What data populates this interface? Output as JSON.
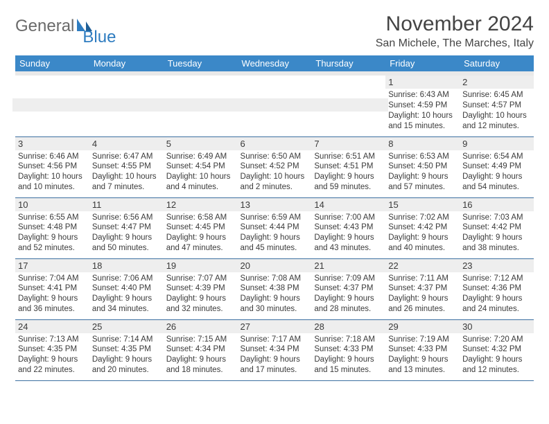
{
  "brand": {
    "general": "General",
    "blue": "Blue"
  },
  "header": {
    "month_title": "November 2024",
    "location": "San Michele, The Marches, Italy"
  },
  "colors": {
    "header_bg": "#3b88c8",
    "header_fg": "#ffffff",
    "daynum_bg": "#eeeeee",
    "row_border": "#3b6fa0",
    "logo_accent": "#2e7cc0",
    "text": "#3a3a3a"
  },
  "weekdays": [
    "Sunday",
    "Monday",
    "Tuesday",
    "Wednesday",
    "Thursday",
    "Friday",
    "Saturday"
  ],
  "weeks": [
    [
      null,
      null,
      null,
      null,
      null,
      {
        "d": "1",
        "sr": "Sunrise: 6:43 AM",
        "ss": "Sunset: 4:59 PM",
        "dl1": "Daylight: 10 hours",
        "dl2": "and 15 minutes."
      },
      {
        "d": "2",
        "sr": "Sunrise: 6:45 AM",
        "ss": "Sunset: 4:57 PM",
        "dl1": "Daylight: 10 hours",
        "dl2": "and 12 minutes."
      }
    ],
    [
      {
        "d": "3",
        "sr": "Sunrise: 6:46 AM",
        "ss": "Sunset: 4:56 PM",
        "dl1": "Daylight: 10 hours",
        "dl2": "and 10 minutes."
      },
      {
        "d": "4",
        "sr": "Sunrise: 6:47 AM",
        "ss": "Sunset: 4:55 PM",
        "dl1": "Daylight: 10 hours",
        "dl2": "and 7 minutes."
      },
      {
        "d": "5",
        "sr": "Sunrise: 6:49 AM",
        "ss": "Sunset: 4:54 PM",
        "dl1": "Daylight: 10 hours",
        "dl2": "and 4 minutes."
      },
      {
        "d": "6",
        "sr": "Sunrise: 6:50 AM",
        "ss": "Sunset: 4:52 PM",
        "dl1": "Daylight: 10 hours",
        "dl2": "and 2 minutes."
      },
      {
        "d": "7",
        "sr": "Sunrise: 6:51 AM",
        "ss": "Sunset: 4:51 PM",
        "dl1": "Daylight: 9 hours",
        "dl2": "and 59 minutes."
      },
      {
        "d": "8",
        "sr": "Sunrise: 6:53 AM",
        "ss": "Sunset: 4:50 PM",
        "dl1": "Daylight: 9 hours",
        "dl2": "and 57 minutes."
      },
      {
        "d": "9",
        "sr": "Sunrise: 6:54 AM",
        "ss": "Sunset: 4:49 PM",
        "dl1": "Daylight: 9 hours",
        "dl2": "and 54 minutes."
      }
    ],
    [
      {
        "d": "10",
        "sr": "Sunrise: 6:55 AM",
        "ss": "Sunset: 4:48 PM",
        "dl1": "Daylight: 9 hours",
        "dl2": "and 52 minutes."
      },
      {
        "d": "11",
        "sr": "Sunrise: 6:56 AM",
        "ss": "Sunset: 4:47 PM",
        "dl1": "Daylight: 9 hours",
        "dl2": "and 50 minutes."
      },
      {
        "d": "12",
        "sr": "Sunrise: 6:58 AM",
        "ss": "Sunset: 4:45 PM",
        "dl1": "Daylight: 9 hours",
        "dl2": "and 47 minutes."
      },
      {
        "d": "13",
        "sr": "Sunrise: 6:59 AM",
        "ss": "Sunset: 4:44 PM",
        "dl1": "Daylight: 9 hours",
        "dl2": "and 45 minutes."
      },
      {
        "d": "14",
        "sr": "Sunrise: 7:00 AM",
        "ss": "Sunset: 4:43 PM",
        "dl1": "Daylight: 9 hours",
        "dl2": "and 43 minutes."
      },
      {
        "d": "15",
        "sr": "Sunrise: 7:02 AM",
        "ss": "Sunset: 4:42 PM",
        "dl1": "Daylight: 9 hours",
        "dl2": "and 40 minutes."
      },
      {
        "d": "16",
        "sr": "Sunrise: 7:03 AM",
        "ss": "Sunset: 4:42 PM",
        "dl1": "Daylight: 9 hours",
        "dl2": "and 38 minutes."
      }
    ],
    [
      {
        "d": "17",
        "sr": "Sunrise: 7:04 AM",
        "ss": "Sunset: 4:41 PM",
        "dl1": "Daylight: 9 hours",
        "dl2": "and 36 minutes."
      },
      {
        "d": "18",
        "sr": "Sunrise: 7:06 AM",
        "ss": "Sunset: 4:40 PM",
        "dl1": "Daylight: 9 hours",
        "dl2": "and 34 minutes."
      },
      {
        "d": "19",
        "sr": "Sunrise: 7:07 AM",
        "ss": "Sunset: 4:39 PM",
        "dl1": "Daylight: 9 hours",
        "dl2": "and 32 minutes."
      },
      {
        "d": "20",
        "sr": "Sunrise: 7:08 AM",
        "ss": "Sunset: 4:38 PM",
        "dl1": "Daylight: 9 hours",
        "dl2": "and 30 minutes."
      },
      {
        "d": "21",
        "sr": "Sunrise: 7:09 AM",
        "ss": "Sunset: 4:37 PM",
        "dl1": "Daylight: 9 hours",
        "dl2": "and 28 minutes."
      },
      {
        "d": "22",
        "sr": "Sunrise: 7:11 AM",
        "ss": "Sunset: 4:37 PM",
        "dl1": "Daylight: 9 hours",
        "dl2": "and 26 minutes."
      },
      {
        "d": "23",
        "sr": "Sunrise: 7:12 AM",
        "ss": "Sunset: 4:36 PM",
        "dl1": "Daylight: 9 hours",
        "dl2": "and 24 minutes."
      }
    ],
    [
      {
        "d": "24",
        "sr": "Sunrise: 7:13 AM",
        "ss": "Sunset: 4:35 PM",
        "dl1": "Daylight: 9 hours",
        "dl2": "and 22 minutes."
      },
      {
        "d": "25",
        "sr": "Sunrise: 7:14 AM",
        "ss": "Sunset: 4:35 PM",
        "dl1": "Daylight: 9 hours",
        "dl2": "and 20 minutes."
      },
      {
        "d": "26",
        "sr": "Sunrise: 7:15 AM",
        "ss": "Sunset: 4:34 PM",
        "dl1": "Daylight: 9 hours",
        "dl2": "and 18 minutes."
      },
      {
        "d": "27",
        "sr": "Sunrise: 7:17 AM",
        "ss": "Sunset: 4:34 PM",
        "dl1": "Daylight: 9 hours",
        "dl2": "and 17 minutes."
      },
      {
        "d": "28",
        "sr": "Sunrise: 7:18 AM",
        "ss": "Sunset: 4:33 PM",
        "dl1": "Daylight: 9 hours",
        "dl2": "and 15 minutes."
      },
      {
        "d": "29",
        "sr": "Sunrise: 7:19 AM",
        "ss": "Sunset: 4:33 PM",
        "dl1": "Daylight: 9 hours",
        "dl2": "and 13 minutes."
      },
      {
        "d": "30",
        "sr": "Sunrise: 7:20 AM",
        "ss": "Sunset: 4:32 PM",
        "dl1": "Daylight: 9 hours",
        "dl2": "and 12 minutes."
      }
    ]
  ]
}
